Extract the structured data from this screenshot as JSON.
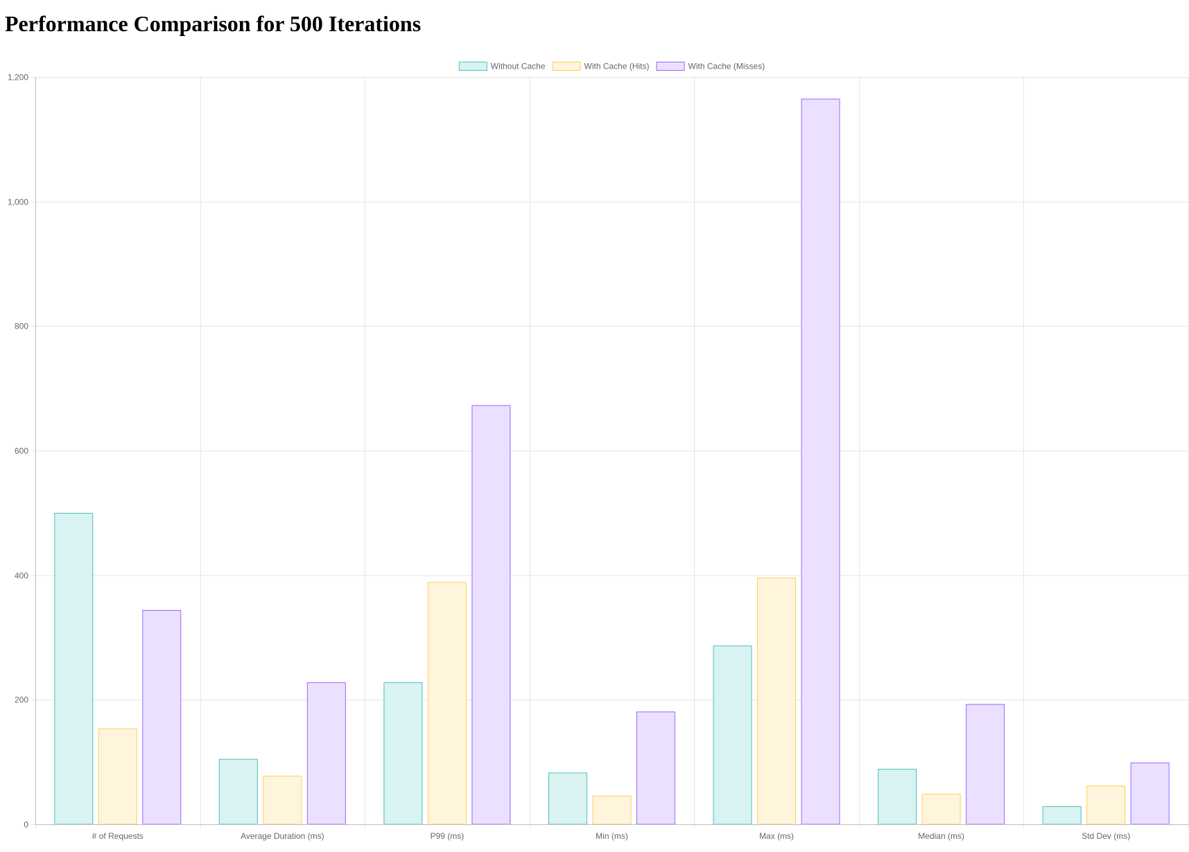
{
  "page": {
    "title": "Performance Comparison for 500 Iterations"
  },
  "chart_data": {
    "type": "bar",
    "title": "",
    "xlabel": "",
    "ylabel": "",
    "categories": [
      "# of Requests",
      "Average Duration (ms)",
      "P99 (ms)",
      "Min (ms)",
      "Max (ms)",
      "Median (ms)",
      "Std Dev (ms)"
    ],
    "series": [
      {
        "name": "Without Cache",
        "values": [
          500,
          105,
          228,
          83,
          287,
          89,
          29
        ],
        "fill": "#d9f2f2",
        "stroke": "#4bc0c0"
      },
      {
        "name": "With Cache (Hits)",
        "values": [
          154,
          78,
          389,
          46,
          396,
          49,
          62
        ],
        "fill": "#fff5dd",
        "stroke": "#ffcd56"
      },
      {
        "name": "With Cache (Misses)",
        "values": [
          344,
          228,
          673,
          181,
          1165,
          193,
          99
        ],
        "fill": "#ebe0ff",
        "stroke": "#9966ff"
      }
    ],
    "ylim": [
      0,
      1200
    ],
    "yticks": [
      0,
      200,
      400,
      600,
      800,
      "1,000",
      "1,200"
    ],
    "grid": true,
    "legend": "top-center",
    "colors": {
      "grid": "#e6e6e6",
      "axis": "#bfbfbf",
      "tick_text": "#666666"
    }
  }
}
